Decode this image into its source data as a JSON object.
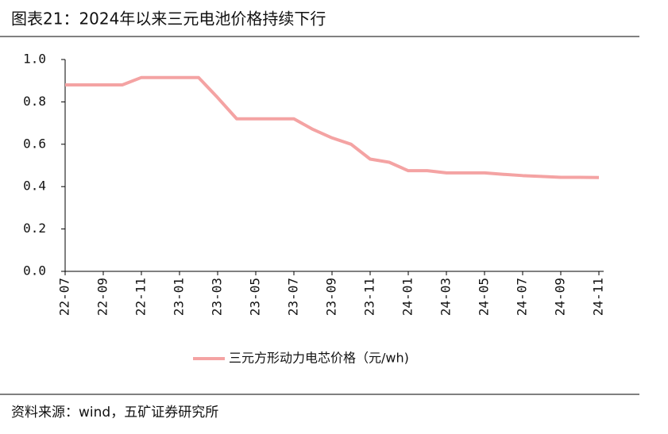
{
  "title": "图表21：2024年以来三元电池价格持续下行",
  "source": "资料来源：wind，五矿证券研究所",
  "chart_data": {
    "type": "line",
    "categories": [
      "22-07",
      null,
      "22-09",
      null,
      "22-11",
      null,
      "23-01",
      null,
      "23-03",
      null,
      "23-05",
      null,
      "23-07",
      null,
      "23-09",
      null,
      "23-11",
      null,
      "24-01",
      null,
      "24-03",
      null,
      "24-05",
      null,
      "24-07",
      null,
      "24-09",
      null,
      "24-11"
    ],
    "series": [
      {
        "name": "三元方形动力电芯价格（元/wh)",
        "color": "#f4a3a3",
        "values": [
          0.88,
          0.88,
          0.88,
          0.88,
          0.915,
          0.915,
          0.915,
          0.915,
          0.82,
          0.72,
          0.72,
          0.72,
          0.72,
          0.67,
          0.63,
          0.6,
          0.53,
          0.515,
          0.475,
          0.475,
          0.465,
          0.465,
          0.465,
          0.458,
          0.452,
          0.448,
          0.444,
          0.444,
          0.443
        ]
      }
    ],
    "ylim": [
      0,
      1
    ],
    "yticks": [
      {
        "value": 0,
        "label": "0.0"
      },
      0.2,
      0.4,
      0.6,
      0.8,
      {
        "value": 1,
        "label": "1.0"
      }
    ],
    "legend": "bottom"
  }
}
